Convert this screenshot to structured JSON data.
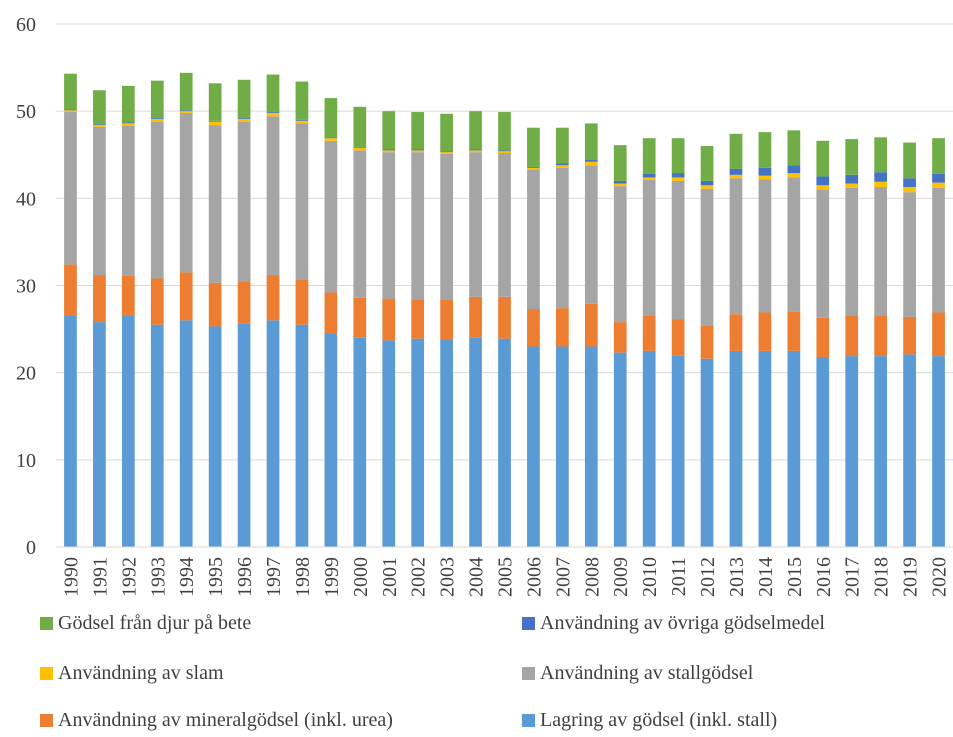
{
  "chart_data": {
    "type": "bar",
    "stacked": true,
    "title": "",
    "xlabel": "",
    "ylabel": "",
    "ylim": [
      0,
      60
    ],
    "yticks": [
      0,
      10,
      20,
      30,
      40,
      50,
      60
    ],
    "grid": true,
    "legend_position": "bottom",
    "categories": [
      "1990",
      "1991",
      "1992",
      "1993",
      "1994",
      "1995",
      "1996",
      "1997",
      "1998",
      "1999",
      "2000",
      "2001",
      "2002",
      "2003",
      "2004",
      "2005",
      "2006",
      "2007",
      "2008",
      "2009",
      "2010",
      "2011",
      "2012",
      "2013",
      "2014",
      "2015",
      "2016",
      "2017",
      "2018",
      "2019",
      "2020"
    ],
    "series": [
      {
        "name": "Lagring av gödsel (inkl. stall)",
        "color": "#5B9BD5",
        "values": [
          26.5,
          25.8,
          26.5,
          25.5,
          26.0,
          25.3,
          25.6,
          26.0,
          25.5,
          24.5,
          24.0,
          23.7,
          23.9,
          23.8,
          24.0,
          23.9,
          23.0,
          23.0,
          23.0,
          22.3,
          22.5,
          22.0,
          21.6,
          22.5,
          22.5,
          22.5,
          21.8,
          21.9,
          21.9,
          22.1,
          21.9
        ]
      },
      {
        "name": "Användning av mineralgödsel (inkl. urea)",
        "color": "#ED7D31",
        "values": [
          5.9,
          5.4,
          4.6,
          5.3,
          5.5,
          5.0,
          4.9,
          5.2,
          5.2,
          4.7,
          4.6,
          4.8,
          4.5,
          4.6,
          4.7,
          4.8,
          4.3,
          4.4,
          4.9,
          3.5,
          4.0,
          4.1,
          3.8,
          4.2,
          4.4,
          4.5,
          4.5,
          4.7,
          4.7,
          4.3,
          5.0
        ]
      },
      {
        "name": "Användning av stallgödsel",
        "color": "#A5A5A5",
        "values": [
          17.5,
          17.0,
          17.2,
          18.0,
          18.3,
          18.1,
          18.3,
          18.2,
          17.9,
          17.4,
          16.9,
          16.8,
          16.9,
          16.7,
          16.6,
          16.5,
          16.0,
          16.1,
          15.9,
          15.6,
          15.6,
          15.9,
          15.7,
          15.6,
          15.3,
          15.4,
          14.7,
          14.6,
          14.7,
          14.3,
          14.3
        ]
      },
      {
        "name": "Användning av slam",
        "color": "#FFC000",
        "values": [
          0.2,
          0.2,
          0.3,
          0.3,
          0.2,
          0.4,
          0.3,
          0.4,
          0.3,
          0.3,
          0.3,
          0.2,
          0.2,
          0.2,
          0.2,
          0.2,
          0.2,
          0.3,
          0.4,
          0.3,
          0.3,
          0.4,
          0.4,
          0.4,
          0.4,
          0.5,
          0.5,
          0.5,
          0.6,
          0.6,
          0.6
        ]
      },
      {
        "name": "Användning av övriga gödselmedel",
        "color": "#4472C4",
        "values": [
          0.1,
          0.1,
          0.1,
          0.1,
          0.1,
          0.1,
          0.1,
          0.1,
          0.1,
          0.1,
          0.1,
          0.1,
          0.1,
          0.1,
          0.1,
          0.1,
          0.1,
          0.2,
          0.2,
          0.3,
          0.4,
          0.5,
          0.5,
          0.7,
          0.9,
          0.9,
          1.0,
          1.0,
          1.1,
          1.0,
          1.0
        ]
      },
      {
        "name": "Gödsel från djur på bete",
        "color": "#70AD47",
        "values": [
          4.1,
          3.9,
          4.2,
          4.3,
          4.3,
          4.3,
          4.4,
          4.3,
          4.4,
          4.5,
          4.6,
          4.4,
          4.3,
          4.3,
          4.4,
          4.4,
          4.5,
          4.1,
          4.2,
          4.1,
          4.1,
          4.0,
          4.0,
          4.0,
          4.1,
          4.0,
          4.1,
          4.1,
          4.0,
          4.1,
          4.1
        ]
      }
    ]
  },
  "legend_rows": [
    [
      {
        "series": 5,
        "label": "Gödsel från djur på bete"
      },
      {
        "series": 4,
        "label": "Användning av övriga gödselmedel"
      }
    ],
    [
      {
        "series": 3,
        "label": "Användning av slam"
      },
      {
        "series": 2,
        "label": "Användning av stallgödsel"
      }
    ],
    [
      {
        "series": 1,
        "label": "Användning av mineralgödsel (inkl. urea)"
      },
      {
        "series": 0,
        "label": "Lagring av gödsel (inkl. stall)"
      }
    ]
  ]
}
